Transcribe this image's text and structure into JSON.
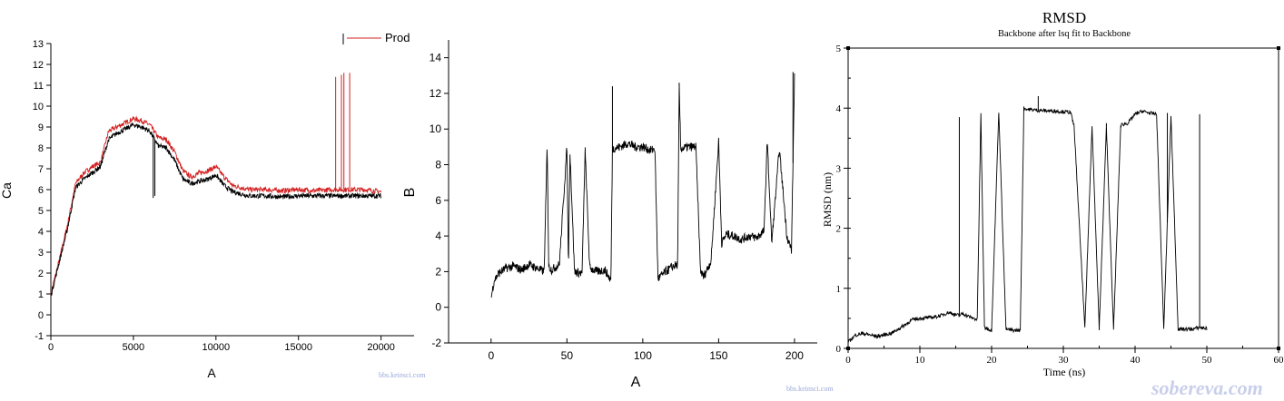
{
  "chart_data": [
    {
      "type": "line",
      "xlabel": "A",
      "ylabel": "Ca",
      "xlim": [
        0,
        22000
      ],
      "ylim": [
        -1,
        13
      ],
      "x_ticks": [
        0,
        5000,
        10000,
        15000,
        20000
      ],
      "y_ticks": [
        -1,
        0,
        1,
        2,
        3,
        4,
        5,
        6,
        7,
        8,
        9,
        10,
        11,
        12,
        13
      ],
      "grid": false,
      "legend": "top-right",
      "series": [
        {
          "name": "Prod",
          "color": "#d42020",
          "x": [
            0,
            500,
            1000,
            1500,
            2000,
            2500,
            3000,
            3500,
            4000,
            4500,
            5000,
            5500,
            6000,
            6500,
            7000,
            7500,
            8000,
            8500,
            9000,
            9500,
            10000,
            10500,
            11000,
            12000,
            13000,
            14000,
            15000,
            16000,
            17000,
            18000,
            19000,
            20000
          ],
          "values": [
            1.0,
            2.6,
            4.3,
            6.3,
            6.8,
            7.1,
            7.3,
            8.8,
            9.0,
            9.2,
            9.4,
            9.3,
            9.1,
            8.5,
            8.4,
            7.8,
            6.9,
            6.6,
            6.8,
            6.9,
            7.1,
            6.6,
            6.2,
            6.0,
            6.0,
            5.95,
            6.0,
            5.95,
            6.0,
            6.0,
            6.0,
            5.9
          ],
          "spikes": [
            [
              17250,
              11.4
            ],
            [
              17600,
              11.5
            ],
            [
              17750,
              11.6
            ],
            [
              18100,
              11.6
            ]
          ]
        },
        {
          "name": "",
          "color": "#000000",
          "x": [
            0,
            500,
            1000,
            1500,
            2000,
            2500,
            3000,
            3500,
            4000,
            4500,
            5000,
            5500,
            6000,
            6500,
            7000,
            7500,
            8000,
            8500,
            9000,
            9500,
            10000,
            10500,
            11000,
            12000,
            13000,
            14000,
            15000,
            16000,
            17000,
            18000,
            19000,
            20000
          ],
          "values": [
            0.9,
            2.5,
            4.1,
            6.1,
            6.5,
            6.8,
            7.1,
            8.4,
            8.7,
            8.9,
            9.1,
            9.0,
            8.8,
            8.1,
            8.0,
            7.4,
            6.5,
            6.3,
            6.4,
            6.5,
            6.7,
            6.2,
            5.9,
            5.7,
            5.7,
            5.65,
            5.7,
            5.7,
            5.7,
            5.7,
            5.7,
            5.7
          ],
          "spikes": [
            [
              6200,
              5.6
            ],
            [
              6300,
              5.7
            ]
          ]
        }
      ]
    },
    {
      "type": "line",
      "xlabel": "A",
      "ylabel": "B",
      "xlim": [
        -28,
        215
      ],
      "ylim": [
        -2,
        15
      ],
      "x_ticks": [
        0,
        50,
        100,
        150,
        200
      ],
      "y_ticks": [
        -2,
        0,
        2,
        4,
        6,
        8,
        10,
        12,
        14
      ],
      "grid": false,
      "series": [
        {
          "name": "",
          "color": "#000000",
          "x": [
            0,
            2,
            5,
            10,
            15,
            20,
            25,
            30,
            35,
            37,
            38,
            40,
            45,
            50,
            51,
            52,
            55,
            60,
            62,
            65,
            70,
            75,
            79,
            80,
            85,
            90,
            95,
            100,
            105,
            108,
            110,
            115,
            120,
            123,
            124,
            125,
            130,
            135,
            138,
            140,
            145,
            150,
            152,
            155,
            160,
            165,
            170,
            175,
            180,
            182,
            185,
            190,
            195,
            198,
            200
          ],
          "values": [
            0.5,
            1.5,
            1.9,
            2.2,
            2.3,
            2.1,
            2.4,
            2.2,
            2.0,
            9.1,
            2.3,
            2.1,
            2.4,
            9.0,
            2.2,
            8.8,
            2.0,
            1.9,
            8.8,
            2.2,
            2.0,
            2.1,
            1.5,
            8.9,
            9.0,
            9.2,
            9.0,
            9.0,
            8.8,
            8.9,
            1.6,
            2.0,
            2.3,
            2.4,
            12.4,
            8.9,
            9.0,
            9.0,
            2.1,
            1.7,
            2.6,
            9.3,
            3.6,
            4.1,
            4.0,
            3.8,
            4.0,
            3.9,
            4.3,
            9.4,
            3.6,
            8.9,
            4.0,
            3.2,
            13.0
          ],
          "spikes": [
            [
              80,
              12.4
            ],
            [
              124,
              12.6
            ],
            [
              199,
              13.2
            ]
          ]
        }
      ]
    },
    {
      "type": "line",
      "title": "RMSD",
      "subtitle": "Backbone after lsq fit to Backbone",
      "xlabel": "Time (ns)",
      "ylabel": "RMSD (nm)",
      "xlim": [
        0,
        60
      ],
      "ylim": [
        0,
        5
      ],
      "x_ticks": [
        0,
        10,
        20,
        30,
        40,
        50,
        60
      ],
      "y_ticks": [
        0,
        1,
        2,
        3,
        4,
        5
      ],
      "grid": false,
      "series": [
        {
          "name": "",
          "color": "#000000",
          "x": [
            0,
            1,
            2,
            4,
            6,
            7,
            8,
            9,
            10,
            12,
            13,
            14,
            15,
            15.5,
            16,
            17,
            18,
            18.5,
            19,
            20,
            21,
            22,
            23,
            24,
            24.5,
            25,
            27,
            29,
            31,
            31.5,
            33,
            34,
            35,
            36,
            37,
            38,
            39,
            40,
            41,
            42,
            43,
            44,
            45,
            46,
            47,
            48,
            49,
            50
          ],
          "values": [
            0.1,
            0.22,
            0.25,
            0.2,
            0.25,
            0.32,
            0.4,
            0.48,
            0.5,
            0.52,
            0.55,
            0.6,
            0.56,
            0.55,
            0.58,
            0.52,
            0.48,
            3.9,
            0.35,
            0.3,
            3.95,
            0.32,
            0.3,
            0.3,
            4.0,
            3.98,
            3.96,
            3.95,
            3.93,
            3.7,
            0.32,
            3.72,
            0.32,
            3.7,
            0.3,
            3.72,
            3.75,
            3.9,
            3.95,
            3.92,
            3.9,
            0.32,
            3.88,
            0.32,
            0.32,
            0.32,
            0.35,
            0.33
          ],
          "spikes": [
            [
              15.5,
              3.85
            ],
            [
              26.5,
              4.2
            ],
            [
              36,
              3.75
            ],
            [
              44.5,
              3.92
            ],
            [
              49,
              3.9
            ]
          ]
        }
      ]
    }
  ],
  "legend_label": "Prod",
  "watermarks": {
    "left": "bbs.keinsci.com",
    "middle": "bbs.keinsci.com",
    "right": "sobereva.com"
  }
}
